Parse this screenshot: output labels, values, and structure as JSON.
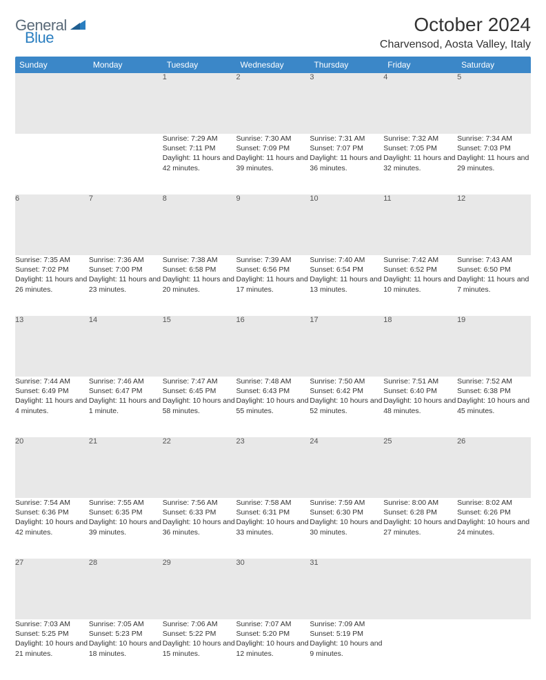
{
  "logo": {
    "word1": "General",
    "word2": "Blue"
  },
  "title": "October 2024",
  "location": "Charvensod, Aosta Valley, Italy",
  "colors": {
    "header_bg": "#3b87c8",
    "row_divider": "#2a6aa5",
    "daynum_bg": "#e8e8e8",
    "logo_gray": "#5a6a78",
    "logo_blue": "#2a7ec0"
  },
  "weekdays": [
    "Sunday",
    "Monday",
    "Tuesday",
    "Wednesday",
    "Thursday",
    "Friday",
    "Saturday"
  ],
  "weeks": [
    [
      {
        "n": "",
        "sunrise": "",
        "sunset": "",
        "daylight": ""
      },
      {
        "n": "",
        "sunrise": "",
        "sunset": "",
        "daylight": ""
      },
      {
        "n": "1",
        "sunrise": "Sunrise: 7:29 AM",
        "sunset": "Sunset: 7:11 PM",
        "daylight": "Daylight: 11 hours and 42 minutes."
      },
      {
        "n": "2",
        "sunrise": "Sunrise: 7:30 AM",
        "sunset": "Sunset: 7:09 PM",
        "daylight": "Daylight: 11 hours and 39 minutes."
      },
      {
        "n": "3",
        "sunrise": "Sunrise: 7:31 AM",
        "sunset": "Sunset: 7:07 PM",
        "daylight": "Daylight: 11 hours and 36 minutes."
      },
      {
        "n": "4",
        "sunrise": "Sunrise: 7:32 AM",
        "sunset": "Sunset: 7:05 PM",
        "daylight": "Daylight: 11 hours and 32 minutes."
      },
      {
        "n": "5",
        "sunrise": "Sunrise: 7:34 AM",
        "sunset": "Sunset: 7:03 PM",
        "daylight": "Daylight: 11 hours and 29 minutes."
      }
    ],
    [
      {
        "n": "6",
        "sunrise": "Sunrise: 7:35 AM",
        "sunset": "Sunset: 7:02 PM",
        "daylight": "Daylight: 11 hours and 26 minutes."
      },
      {
        "n": "7",
        "sunrise": "Sunrise: 7:36 AM",
        "sunset": "Sunset: 7:00 PM",
        "daylight": "Daylight: 11 hours and 23 minutes."
      },
      {
        "n": "8",
        "sunrise": "Sunrise: 7:38 AM",
        "sunset": "Sunset: 6:58 PM",
        "daylight": "Daylight: 11 hours and 20 minutes."
      },
      {
        "n": "9",
        "sunrise": "Sunrise: 7:39 AM",
        "sunset": "Sunset: 6:56 PM",
        "daylight": "Daylight: 11 hours and 17 minutes."
      },
      {
        "n": "10",
        "sunrise": "Sunrise: 7:40 AM",
        "sunset": "Sunset: 6:54 PM",
        "daylight": "Daylight: 11 hours and 13 minutes."
      },
      {
        "n": "11",
        "sunrise": "Sunrise: 7:42 AM",
        "sunset": "Sunset: 6:52 PM",
        "daylight": "Daylight: 11 hours and 10 minutes."
      },
      {
        "n": "12",
        "sunrise": "Sunrise: 7:43 AM",
        "sunset": "Sunset: 6:50 PM",
        "daylight": "Daylight: 11 hours and 7 minutes."
      }
    ],
    [
      {
        "n": "13",
        "sunrise": "Sunrise: 7:44 AM",
        "sunset": "Sunset: 6:49 PM",
        "daylight": "Daylight: 11 hours and 4 minutes."
      },
      {
        "n": "14",
        "sunrise": "Sunrise: 7:46 AM",
        "sunset": "Sunset: 6:47 PM",
        "daylight": "Daylight: 11 hours and 1 minute."
      },
      {
        "n": "15",
        "sunrise": "Sunrise: 7:47 AM",
        "sunset": "Sunset: 6:45 PM",
        "daylight": "Daylight: 10 hours and 58 minutes."
      },
      {
        "n": "16",
        "sunrise": "Sunrise: 7:48 AM",
        "sunset": "Sunset: 6:43 PM",
        "daylight": "Daylight: 10 hours and 55 minutes."
      },
      {
        "n": "17",
        "sunrise": "Sunrise: 7:50 AM",
        "sunset": "Sunset: 6:42 PM",
        "daylight": "Daylight: 10 hours and 52 minutes."
      },
      {
        "n": "18",
        "sunrise": "Sunrise: 7:51 AM",
        "sunset": "Sunset: 6:40 PM",
        "daylight": "Daylight: 10 hours and 48 minutes."
      },
      {
        "n": "19",
        "sunrise": "Sunrise: 7:52 AM",
        "sunset": "Sunset: 6:38 PM",
        "daylight": "Daylight: 10 hours and 45 minutes."
      }
    ],
    [
      {
        "n": "20",
        "sunrise": "Sunrise: 7:54 AM",
        "sunset": "Sunset: 6:36 PM",
        "daylight": "Daylight: 10 hours and 42 minutes."
      },
      {
        "n": "21",
        "sunrise": "Sunrise: 7:55 AM",
        "sunset": "Sunset: 6:35 PM",
        "daylight": "Daylight: 10 hours and 39 minutes."
      },
      {
        "n": "22",
        "sunrise": "Sunrise: 7:56 AM",
        "sunset": "Sunset: 6:33 PM",
        "daylight": "Daylight: 10 hours and 36 minutes."
      },
      {
        "n": "23",
        "sunrise": "Sunrise: 7:58 AM",
        "sunset": "Sunset: 6:31 PM",
        "daylight": "Daylight: 10 hours and 33 minutes."
      },
      {
        "n": "24",
        "sunrise": "Sunrise: 7:59 AM",
        "sunset": "Sunset: 6:30 PM",
        "daylight": "Daylight: 10 hours and 30 minutes."
      },
      {
        "n": "25",
        "sunrise": "Sunrise: 8:00 AM",
        "sunset": "Sunset: 6:28 PM",
        "daylight": "Daylight: 10 hours and 27 minutes."
      },
      {
        "n": "26",
        "sunrise": "Sunrise: 8:02 AM",
        "sunset": "Sunset: 6:26 PM",
        "daylight": "Daylight: 10 hours and 24 minutes."
      }
    ],
    [
      {
        "n": "27",
        "sunrise": "Sunrise: 7:03 AM",
        "sunset": "Sunset: 5:25 PM",
        "daylight": "Daylight: 10 hours and 21 minutes."
      },
      {
        "n": "28",
        "sunrise": "Sunrise: 7:05 AM",
        "sunset": "Sunset: 5:23 PM",
        "daylight": "Daylight: 10 hours and 18 minutes."
      },
      {
        "n": "29",
        "sunrise": "Sunrise: 7:06 AM",
        "sunset": "Sunset: 5:22 PM",
        "daylight": "Daylight: 10 hours and 15 minutes."
      },
      {
        "n": "30",
        "sunrise": "Sunrise: 7:07 AM",
        "sunset": "Sunset: 5:20 PM",
        "daylight": "Daylight: 10 hours and 12 minutes."
      },
      {
        "n": "31",
        "sunrise": "Sunrise: 7:09 AM",
        "sunset": "Sunset: 5:19 PM",
        "daylight": "Daylight: 10 hours and 9 minutes."
      },
      {
        "n": "",
        "sunrise": "",
        "sunset": "",
        "daylight": ""
      },
      {
        "n": "",
        "sunrise": "",
        "sunset": "",
        "daylight": ""
      }
    ]
  ]
}
